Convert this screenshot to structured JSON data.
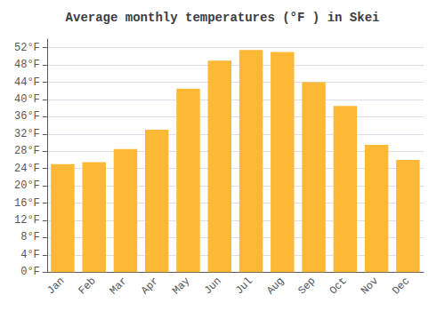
{
  "chart_data": {
    "type": "bar",
    "title": "Average monthly temperatures (°F ) in Skei",
    "categories": [
      "Jan",
      "Feb",
      "Mar",
      "Apr",
      "May",
      "Jun",
      "Jul",
      "Aug",
      "Sep",
      "Oct",
      "Nov",
      "Dec"
    ],
    "values": [
      25,
      25.5,
      28.5,
      33,
      42.5,
      49,
      51.5,
      51,
      44,
      38.5,
      29.5,
      26
    ],
    "color": "#FDB935",
    "ylim": [
      0,
      54
    ],
    "yticks": [
      {
        "value": 0,
        "label": "0°F"
      },
      {
        "value": 4,
        "label": "4°F"
      },
      {
        "value": 8,
        "label": "8°F"
      },
      {
        "value": 12,
        "label": "12°F"
      },
      {
        "value": 16,
        "label": "16°F"
      },
      {
        "value": 20,
        "label": "20°F"
      },
      {
        "value": 24,
        "label": "24°F"
      },
      {
        "value": 28,
        "label": "28°F"
      },
      {
        "value": 32,
        "label": "32°F"
      },
      {
        "value": 36,
        "label": "36°F"
      },
      {
        "value": 40,
        "label": "40°F"
      },
      {
        "value": 44,
        "label": "44°F"
      },
      {
        "value": 48,
        "label": "48°F"
      },
      {
        "value": 52,
        "label": "52°F"
      }
    ],
    "grid": true
  }
}
